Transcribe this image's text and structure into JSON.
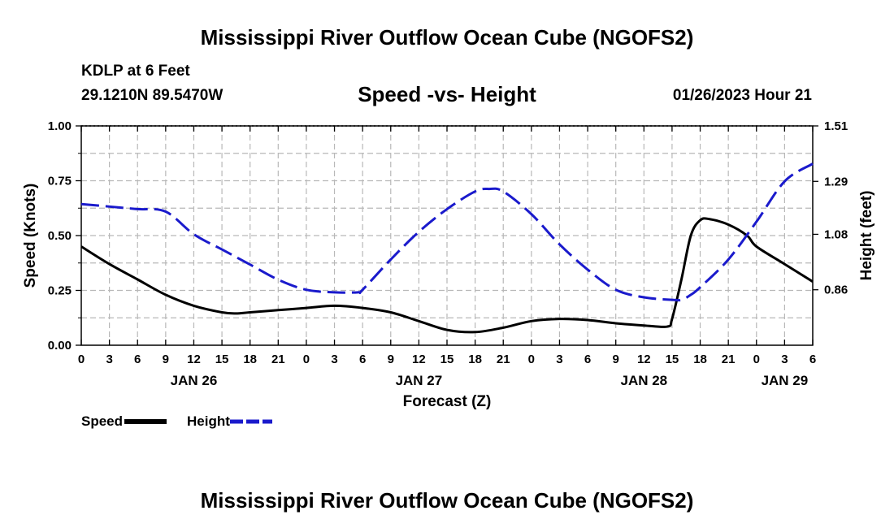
{
  "header": {
    "title": "Mississippi River Outflow Ocean Cube (NGOFS2)",
    "station": "KDLP at 6 Feet",
    "coords": "29.1210N  89.5470W",
    "subtitle": "Speed -vs- Height",
    "datetime": "01/26/2023 Hour 21"
  },
  "footer": {
    "title": "Mississippi River Outflow Ocean Cube (NGOFS2)"
  },
  "legend": {
    "speed_label": "Speed",
    "height_label": "Height"
  },
  "colors": {
    "speed": "#000000",
    "height": "#1a1acc",
    "grid": "#b8b8b8"
  },
  "chart_data": {
    "type": "line",
    "title": "Speed -vs- Height",
    "xlabel": "Forecast (Z)",
    "ylabel": "Speed (Knots)",
    "y2label": "Height (feet)",
    "x_unit": "forecast hours from Jan 26 00Z",
    "xlim": [
      0,
      78
    ],
    "ylim": [
      0,
      1.0
    ],
    "y2lim": [
      0.64,
      1.51
    ],
    "x_ticks": [
      0,
      3,
      6,
      9,
      12,
      15,
      18,
      21,
      24,
      27,
      30,
      33,
      36,
      39,
      42,
      45,
      48,
      51,
      54,
      57,
      60,
      63,
      66,
      69,
      72,
      75,
      78
    ],
    "x_tick_labels": [
      "0",
      "3",
      "6",
      "9",
      "12",
      "15",
      "18",
      "21",
      "0",
      "3",
      "6",
      "9",
      "12",
      "15",
      "18",
      "21",
      "0",
      "3",
      "6",
      "9",
      "12",
      "15",
      "18",
      "21",
      "0",
      "3",
      "6"
    ],
    "date_labels": [
      {
        "x": 12,
        "label": "JAN 26"
      },
      {
        "x": 36,
        "label": "JAN 27"
      },
      {
        "x": 60,
        "label": "JAN 28"
      },
      {
        "x": 75,
        "label": "JAN 29"
      }
    ],
    "y_ticks": [
      0,
      0.25,
      0.5,
      0.75,
      1.0
    ],
    "y_tick_labels": [
      "0.00",
      "0.25",
      "0.50",
      "0.75",
      "1.00"
    ],
    "y2_ticks": [
      0.86,
      1.08,
      1.29,
      1.51
    ],
    "y2_tick_labels": [
      "0.86",
      "1.08",
      "1.29",
      "1.51"
    ],
    "grid": true,
    "series": [
      {
        "name": "Speed",
        "axis": "left",
        "style": "solid",
        "x": [
          0,
          3,
          6,
          9,
          12,
          15,
          16.5,
          18,
          21,
          24,
          27,
          30,
          33,
          36,
          39,
          42,
          45,
          48,
          51,
          54,
          57,
          60,
          62.5,
          63,
          64,
          65,
          66,
          67,
          69,
          71,
          72,
          75,
          78
        ],
        "values": [
          0.45,
          0.37,
          0.3,
          0.23,
          0.18,
          0.15,
          0.145,
          0.15,
          0.16,
          0.17,
          0.18,
          0.17,
          0.15,
          0.11,
          0.07,
          0.06,
          0.08,
          0.11,
          0.12,
          0.115,
          0.1,
          0.09,
          0.085,
          0.12,
          0.3,
          0.5,
          0.57,
          0.575,
          0.55,
          0.5,
          0.45,
          0.37,
          0.29
        ]
      },
      {
        "name": "Height",
        "axis": "right",
        "style": "dashed",
        "x": [
          0,
          3,
          6,
          9,
          12,
          15,
          18,
          21,
          24,
          27,
          29.5,
          30,
          33,
          36,
          39,
          42,
          43.5,
          45,
          48,
          51,
          54,
          57,
          60,
          63,
          64,
          65,
          66,
          69,
          72,
          75,
          78
        ],
        "values": [
          1.2,
          1.19,
          1.18,
          1.17,
          1.08,
          1.02,
          0.96,
          0.9,
          0.86,
          0.85,
          0.85,
          0.86,
          0.98,
          1.09,
          1.18,
          1.25,
          1.26,
          1.25,
          1.16,
          1.04,
          0.94,
          0.86,
          0.83,
          0.82,
          0.82,
          0.84,
          0.87,
          0.98,
          1.13,
          1.29,
          1.36
        ]
      }
    ]
  }
}
